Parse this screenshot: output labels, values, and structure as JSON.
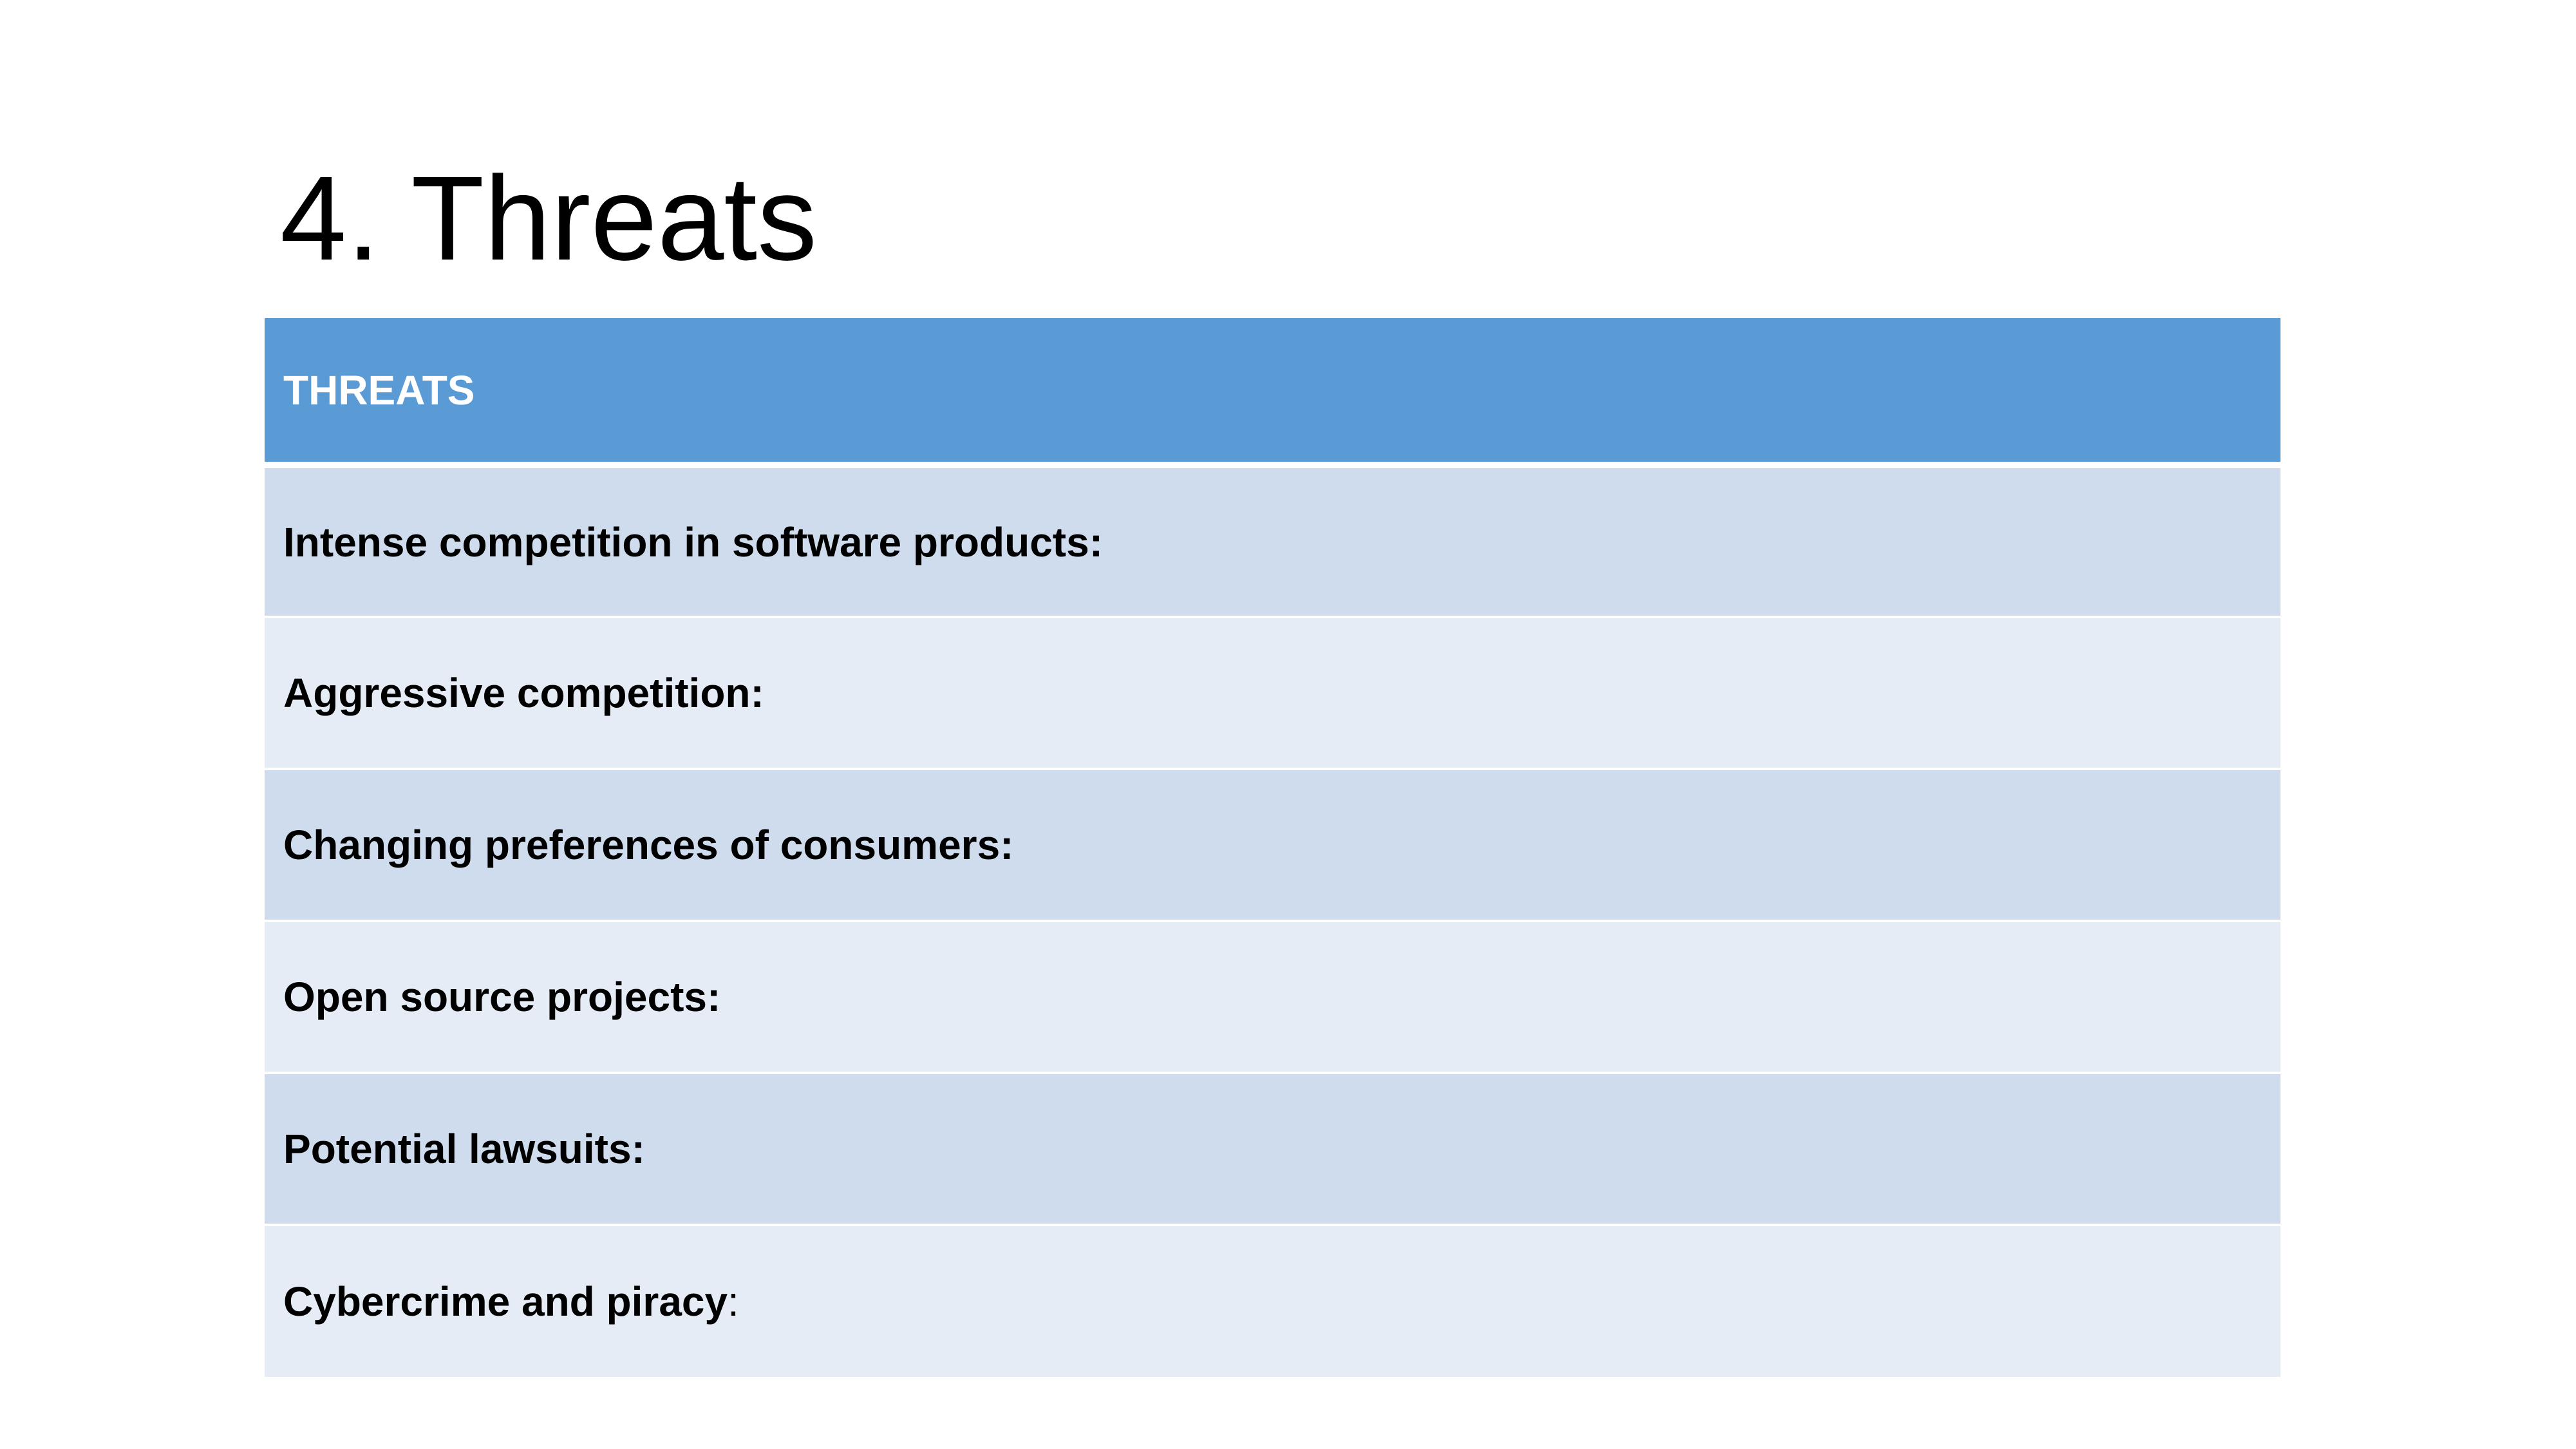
{
  "slide": {
    "title": "4. Threats"
  },
  "table": {
    "header": "THREATS",
    "rows": [
      {
        "label": "Intense competition in software products:",
        "suffix": ""
      },
      {
        "label": "Aggressive competition:",
        "suffix": ""
      },
      {
        "label": "Changing preferences of consumers:",
        "suffix": ""
      },
      {
        "label": "Open source projects:",
        "suffix": ""
      },
      {
        "label": "Potential lawsuits:",
        "suffix": ""
      },
      {
        "label": "Cybercrime and piracy",
        "suffix": ":"
      }
    ]
  },
  "colors": {
    "header_bg": "#5b9bd5",
    "row_dark_bg": "#cfdcee",
    "row_light_bg": "#e6ecf5"
  }
}
